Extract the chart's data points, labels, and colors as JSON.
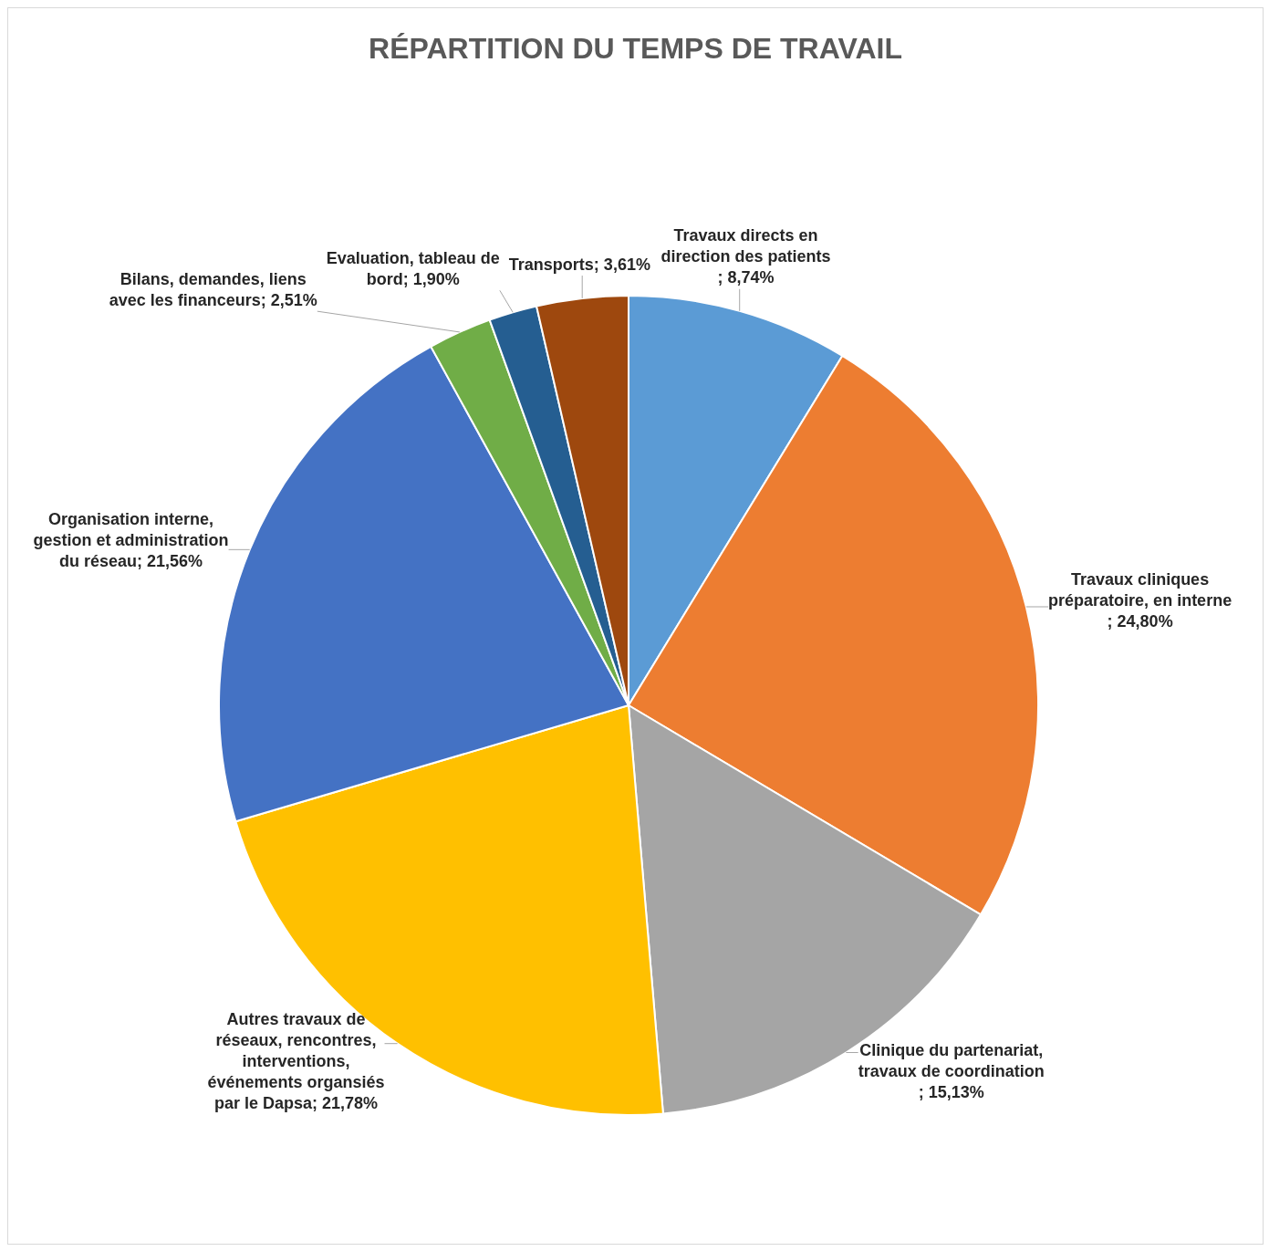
{
  "chart_data": {
    "type": "pie",
    "title": "RÉPARTITION DU TEMPS DE TRAVAIL",
    "categories": [
      "Travaux directs en direction des patients",
      "Travaux cliniques préparatoire, en interne",
      "Clinique du partenariat, travaux de coordination",
      "Autres travaux de réseaux, rencontres, interventions, événements organsiés par le Dapsa",
      "Organisation interne, gestion et administration du réseau",
      "Bilans, demandes, liens avec les financeurs",
      "Evaluation, tableau de bord",
      "Transports"
    ],
    "values": [
      8.74,
      24.8,
      15.13,
      21.78,
      21.56,
      2.51,
      1.9,
      3.61
    ],
    "value_labels": [
      "; 8,74%",
      "; 24,80%",
      "; 15,13%",
      "; 21,78%",
      "; 21,56%",
      "; 2,51%",
      "; 1,90%",
      "; 3,61%"
    ],
    "colors": [
      "#5b9bd5",
      "#ed7d31",
      "#a5a5a5",
      "#ffc000",
      "#4472c4",
      "#70ad47",
      "#255e91",
      "#9e480e"
    ]
  }
}
